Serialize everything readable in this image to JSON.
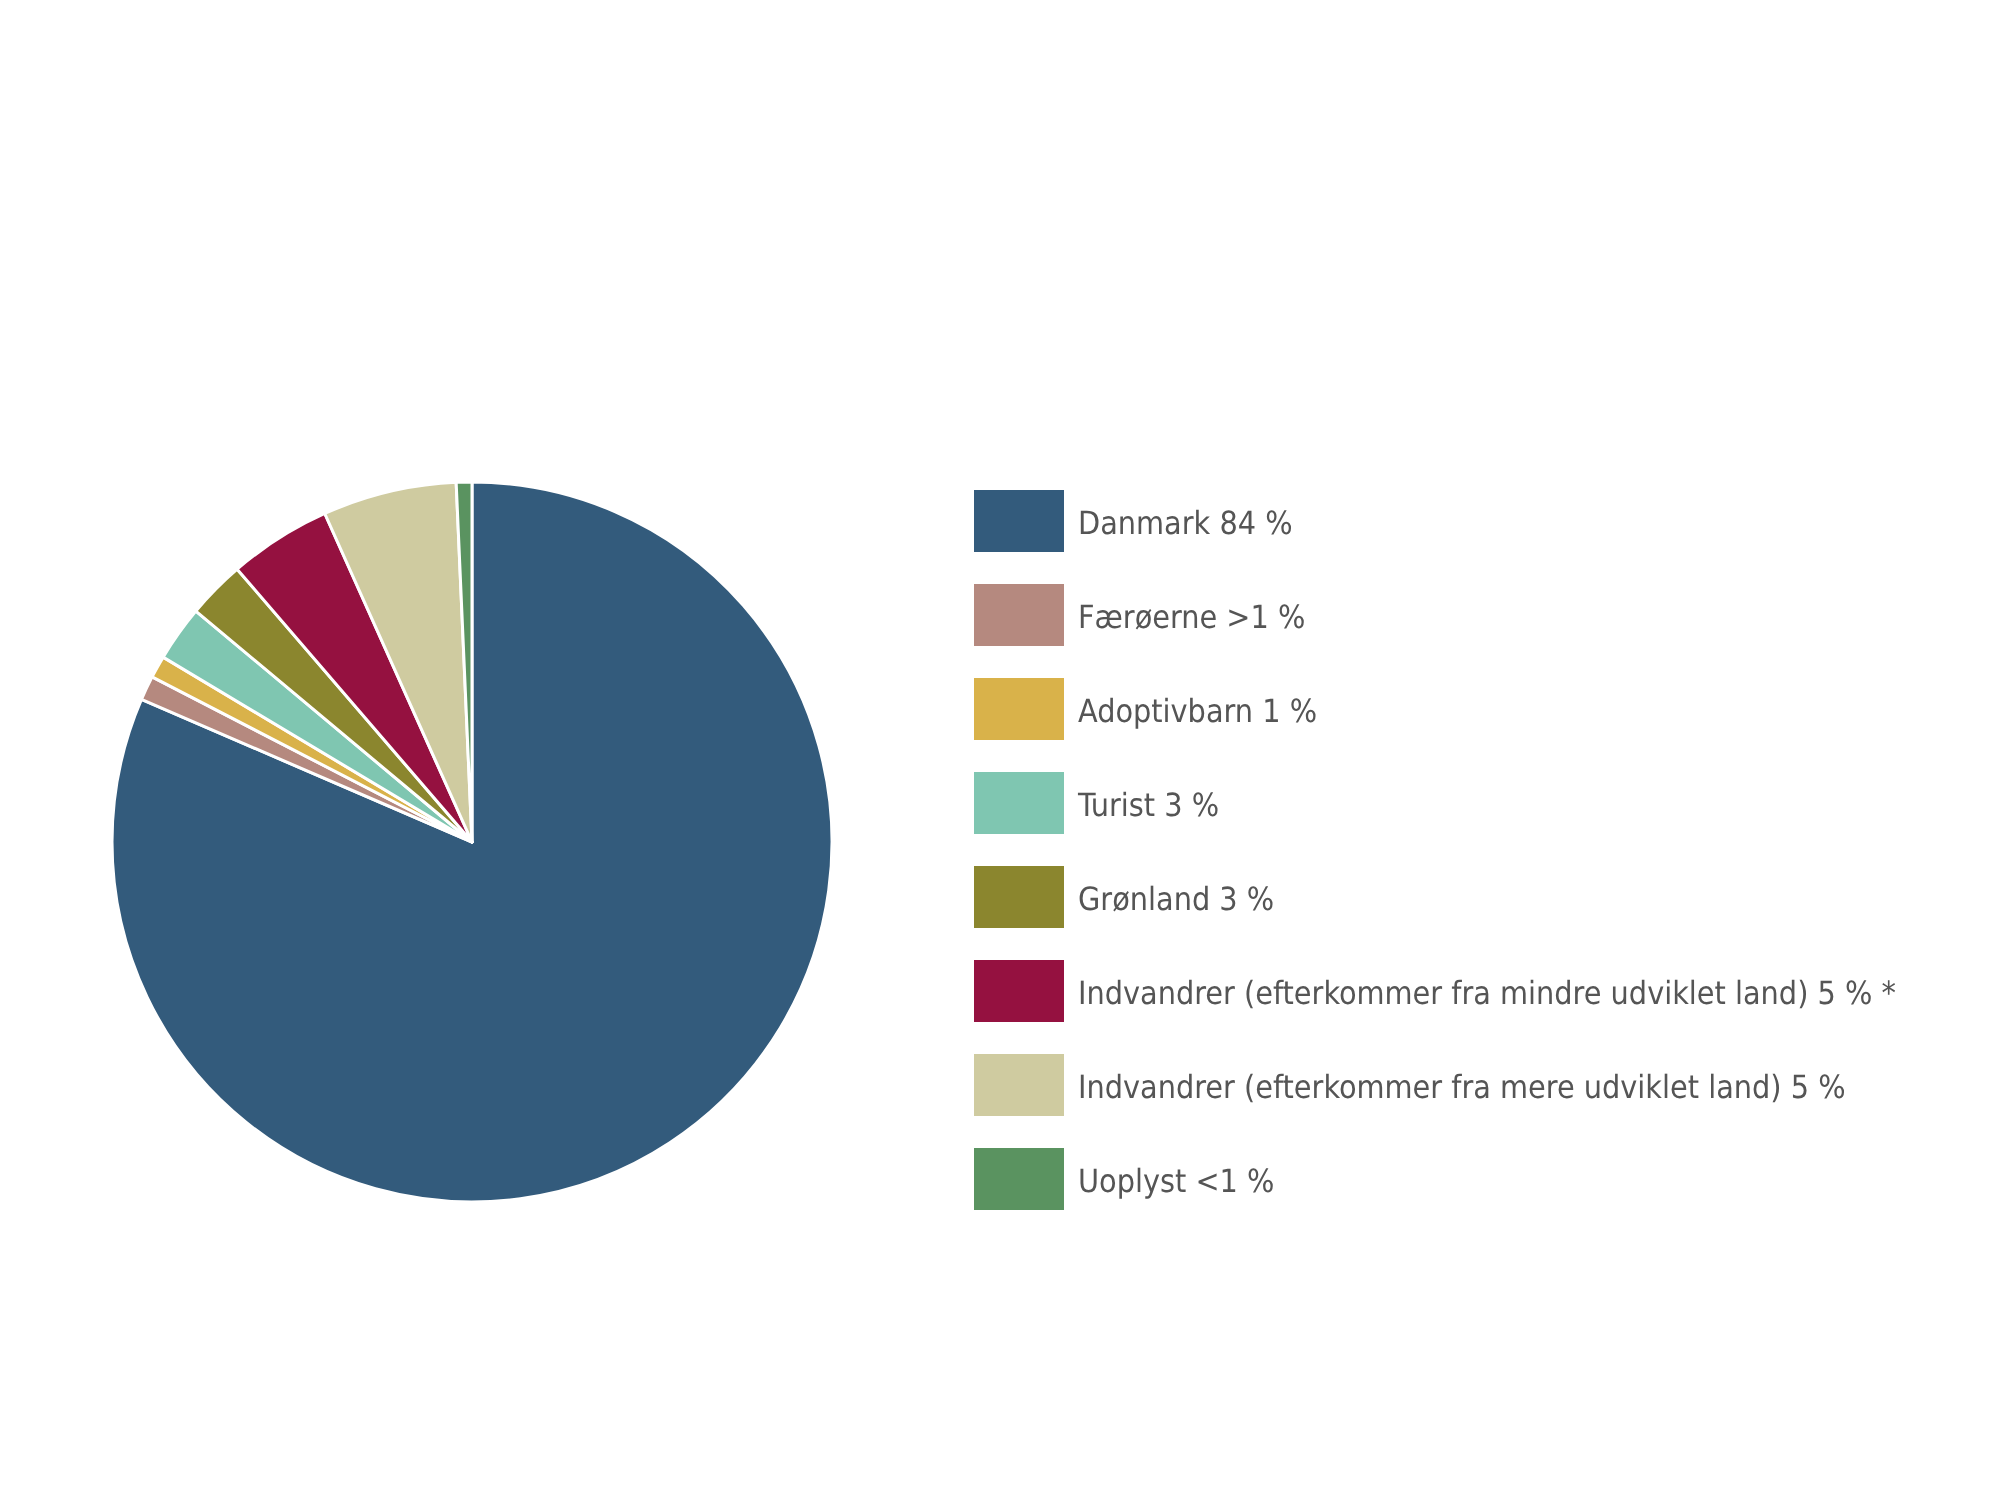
{
  "chart_data": {
    "type": "pie",
    "categories": [
      "Danmark 84 %",
      "Færøerne >1 %",
      "Adoptivbarn 1 %",
      "Turist 3 %",
      "Grønland 3 %",
      "Indvandrer (efterkommer fra mindre udviklet land) 5 % *",
      "Indvandrer (efterkommer fra mere udviklet land) 5 %",
      "Uoplyst <1 %"
    ],
    "values": [
      81.4,
      1.1,
      1.0,
      2.5,
      2.6,
      4.6,
      6.0,
      0.7
    ],
    "colors": [
      "#335b7c",
      "#b5897f",
      "#d9b24a",
      "#7fc6b1",
      "#8b862e",
      "#951140",
      "#cfcba0",
      "#5a9360"
    ],
    "legend": "right"
  }
}
